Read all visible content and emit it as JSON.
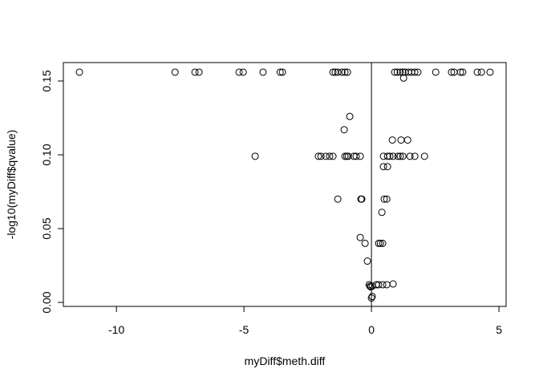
{
  "chart_data": {
    "type": "scatter",
    "x_label": "myDiff$meth.diff",
    "y_label": "-log10(myDiff$qvalue)",
    "x": [
      -11.45,
      -7.7,
      -6.92,
      -6.76,
      -5.19,
      -5.03,
      -4.25,
      -3.58,
      -3.49,
      -1.51,
      -1.42,
      -1.32,
      -1.16,
      -1.04,
      -0.94,
      0.91,
      1.01,
      1.13,
      1.23,
      1.32,
      1.45,
      1.57,
      1.7,
      1.82,
      2.52,
      3.14,
      3.24,
      3.49,
      3.58,
      4.15,
      4.31,
      4.65,
      1.26,
      -0.85,
      -1.07,
      0.82,
      1.16,
      1.42,
      -4.56,
      -2.08,
      -1.98,
      -1.79,
      -1.64,
      -1.51,
      -1.04,
      -0.97,
      -0.91,
      -0.69,
      -0.6,
      -0.44,
      0.47,
      0.63,
      0.72,
      0.85,
      1.04,
      1.13,
      1.23,
      1.51,
      1.7,
      2.08,
      0.47,
      0.63,
      -1.32,
      -0.41,
      -0.38,
      0.5,
      0.6,
      0.41,
      -0.44,
      -0.25,
      0.28,
      0.35,
      0.44,
      -0.16,
      0.85,
      -0.09,
      0.19,
      0.28,
      0.44,
      0.6,
      -0.06,
      0.03,
      -0.03,
      0.03,
      0.0
    ],
    "y": [
      0.156,
      0.156,
      0.156,
      0.156,
      0.156,
      0.156,
      0.156,
      0.156,
      0.156,
      0.156,
      0.156,
      0.156,
      0.156,
      0.156,
      0.156,
      0.156,
      0.156,
      0.156,
      0.156,
      0.156,
      0.156,
      0.156,
      0.156,
      0.156,
      0.156,
      0.156,
      0.156,
      0.156,
      0.156,
      0.156,
      0.156,
      0.156,
      0.152,
      0.126,
      0.117,
      0.11,
      0.11,
      0.11,
      0.099,
      0.099,
      0.099,
      0.099,
      0.099,
      0.099,
      0.099,
      0.099,
      0.099,
      0.099,
      0.099,
      0.099,
      0.099,
      0.099,
      0.099,
      0.099,
      0.099,
      0.099,
      0.099,
      0.099,
      0.099,
      0.099,
      0.092,
      0.092,
      0.07,
      0.07,
      0.07,
      0.07,
      0.07,
      0.061,
      0.044,
      0.04,
      0.04,
      0.04,
      0.04,
      0.028,
      0.0125,
      0.012,
      0.012,
      0.012,
      0.012,
      0.012,
      0.011,
      0.011,
      0.0105,
      0.004,
      0.003
    ],
    "color": "#000000",
    "xlim": [
      -12.08,
      5.28
    ],
    "ylim": [
      -0.0027,
      0.1625
    ],
    "xticks": [
      -10,
      -5,
      0,
      5
    ],
    "yticks": [
      {
        "value": 0,
        "label": "0.00"
      },
      0.05,
      {
        "value": 0.1,
        "label": "0.10"
      },
      0.15
    ],
    "vline": 0
  }
}
